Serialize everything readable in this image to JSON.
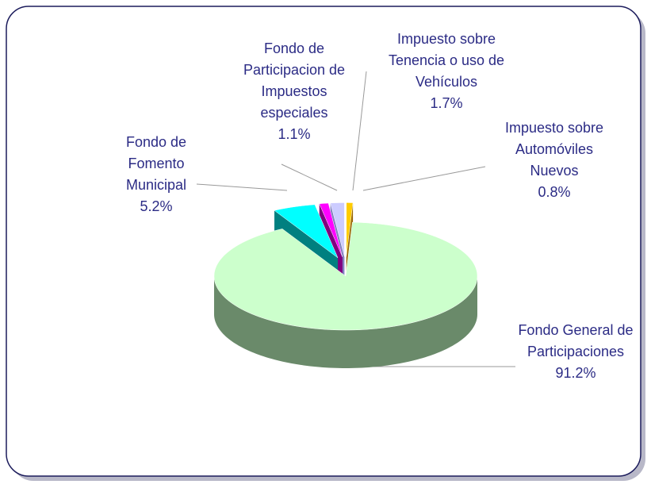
{
  "chart_data": {
    "type": "pie3d",
    "categories": [
      "Impuesto sobre Automóviles Nuevos",
      "Fondo General de Participaciones",
      "Fondo de Fomento Municipal",
      "Fondo de Participacion de Impuestos especiales",
      "Impuesto sobre Tenencia o uso de Vehículos"
    ],
    "values": [
      0.8,
      91.2,
      5.2,
      1.1,
      1.7
    ],
    "value_labels": [
      "0.8%",
      "91.2%",
      "5.2%",
      "1.1%",
      "1.7%"
    ],
    "colors": [
      "#ffcc00",
      "#ccffcc",
      "#00ffff",
      "#ff00ff",
      "#ccccff"
    ],
    "side_colors": [
      "#996600",
      "#6a8a6a",
      "#008080",
      "#800080",
      "#8080c0"
    ]
  }
}
